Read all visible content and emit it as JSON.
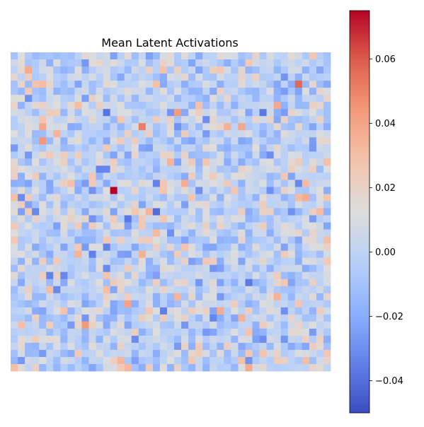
{
  "chart_data": {
    "type": "heatmap",
    "title": "Mean Latent Activations",
    "rows": 45,
    "cols": 45,
    "axes_visible": false,
    "colormap": "coolwarm",
    "vmin": -0.05,
    "vmax": 0.075,
    "colorbar": {
      "position": "right",
      "ticks": [
        -0.04,
        -0.02,
        0.0,
        0.02,
        0.04,
        0.06
      ],
      "tick_labels": [
        "−0.04",
        "−0.02",
        "0.00",
        "0.02",
        "0.04",
        "0.06"
      ]
    },
    "seed": 1337,
    "distribution": {
      "mean": 0.0,
      "std": 0.014
    },
    "notable_cells": [
      {
        "row": 19,
        "col": 14,
        "value": 0.075
      }
    ]
  }
}
